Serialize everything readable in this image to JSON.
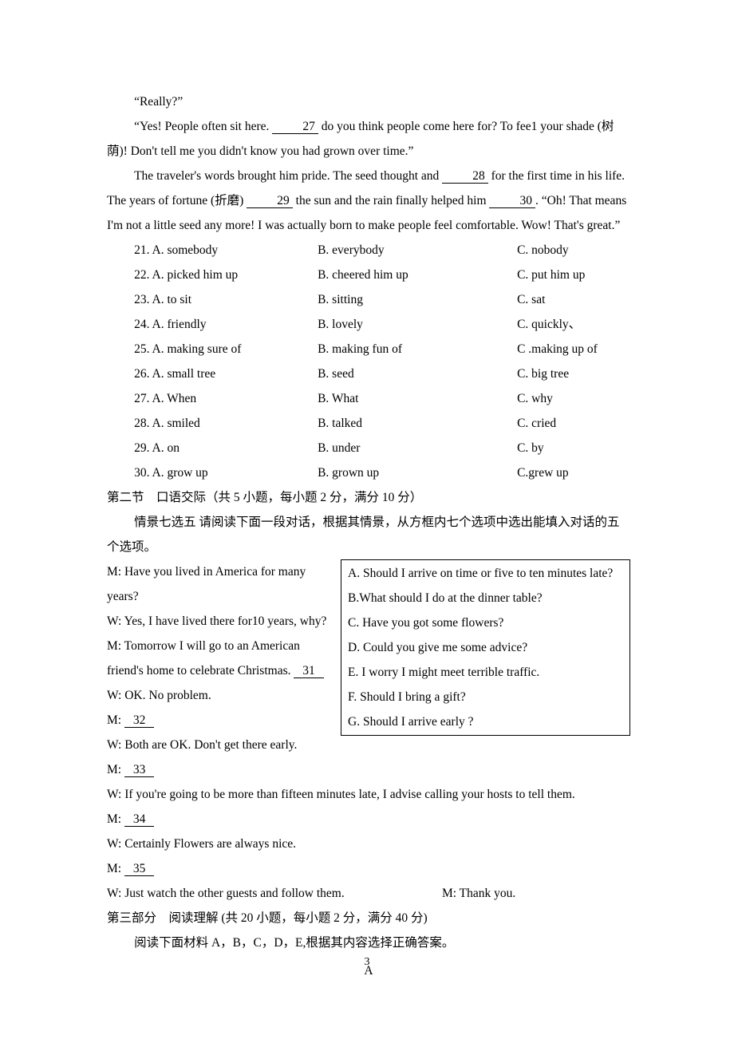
{
  "passage": {
    "p1": "“Really?”",
    "p2_a": "“Yes! People often sit here. ",
    "p2_blank": "27",
    "p2_b": " do you think people come here for? To fee1 your shade (树荫)! Don't tell me you didn't know you had grown over time.”",
    "p3_a": "The traveler's words brought him pride. The seed thought and ",
    "p3_blank1": "28",
    "p3_b": " for the first time in his life. The years of fortune (折磨) ",
    "p3_blank2": "29",
    "p3_c": " the sun and the rain finally helped him ",
    "p3_blank3": "30",
    "p3_d": ". “Oh! That means I'm not a little seed any more! I was actually born to make people feel comfortable. Wow! That's great.”"
  },
  "choices": [
    {
      "n": "21",
      "a": "A. somebody",
      "b": "B. everybody",
      "c": "C. nobody"
    },
    {
      "n": "22",
      "a": "A. picked him up",
      "b": "B. cheered him up",
      "c": "C. put him up"
    },
    {
      "n": "23",
      "a": "A. to sit",
      "b": "B. sitting",
      "c": "C. sat"
    },
    {
      "n": "24",
      "a": "A. friendly",
      "b": "B. lovely",
      "c": "C. quickly、"
    },
    {
      "n": "25",
      "a": "A. making sure of",
      "b": "B. making fun of",
      "c": "C .making up of"
    },
    {
      "n": "26",
      "a": "A. small tree",
      "b": "B. seed",
      "c": "C. big tree"
    },
    {
      "n": "27",
      "a": "A. When",
      "b": "B. What",
      "c": "C. why"
    },
    {
      "n": "28",
      "a": "A. smiled",
      "b": "B. talked",
      "c": "C. cried"
    },
    {
      "n": "29",
      "a": "A. on",
      "b": "B. under",
      "c": "C. by"
    },
    {
      "n": "30",
      "a": "A. grow up",
      "b": "B. grown up",
      "c": "C.grew up"
    }
  ],
  "section2": {
    "title": "第二节　口语交际（共 5 小题，每小题 2 分，满分 10 分）",
    "instr": "情景七选五 请阅读下面一段对话，根据其情景，从方框内七个选项中选出能填入对话的五个选项。"
  },
  "dialog": {
    "l1": "M: Have you lived in America for many years?",
    "l2": "W: Yes, I have lived there for10 years, why?",
    "l3a": "M: Tomorrow I will go to an American friend's home to celebrate Christmas. ",
    "l3blank": "31",
    "l4": "W: OK. No problem.",
    "l5a": "M: ",
    "l5blank": "32",
    "l6": "W: Both are OK. Don't get there early.",
    "l7a": "M: ",
    "l7blank": "33",
    "l8": "W: If you're going to be more than fifteen minutes late, I advise calling your hosts to tell them.",
    "l9a": "M: ",
    "l9blank": "34",
    "l10": "W: Certainly Flowers are always nice.",
    "l11a": "M: ",
    "l11blank": "35",
    "l12a": "W: Just watch the other guests and follow them.",
    "l12b": "M: Thank you."
  },
  "options": {
    "A": "A. Should I arrive on time or five to ten minutes late?",
    "B": "B.What should I do at the dinner table?",
    "C": "C. Have you got some flowers?",
    "D": "D. Could you give me some advice?",
    "E": "E. I worry I might meet terrible traffic.",
    "F": "F. Should I bring a gift?",
    "G": "G. Should I arrive early ?"
  },
  "section3": {
    "title": "第三部分　阅读理解 (共 20 小题，每小题 2 分，满分 40 分)",
    "instr": "阅读下面材料 A，B，C，D，E,根据其内容选择正确答案。",
    "label_a": "A"
  },
  "pagenum": "3"
}
